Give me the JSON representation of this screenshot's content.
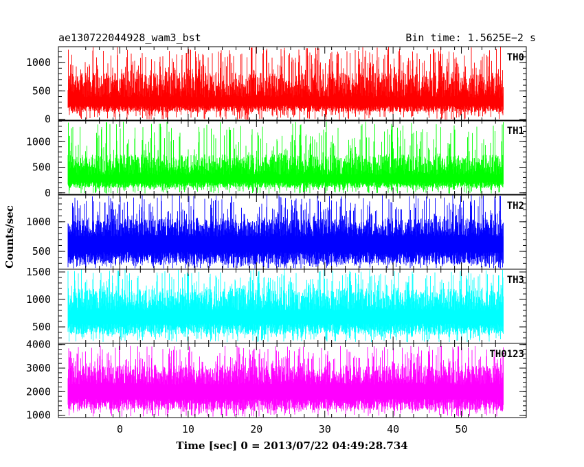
{
  "header": {
    "left_title": "ae130722044928_wam3_bst",
    "right_title": "Bin time: 1.5625E−2 s"
  },
  "ylabel": "Counts/sec",
  "xlabel": "Time [sec] 0 = 2013/07/22 04:49:28.734",
  "chart_data": [
    {
      "type": "line",
      "name": "TH0",
      "color": "#ff0000",
      "ylim": [
        -30,
        1280
      ],
      "yticks": [
        0,
        500,
        1000
      ],
      "x_range": [
        -7.5,
        56
      ],
      "base": 150,
      "spread": [
        380,
        820
      ],
      "spike_max": 1280,
      "series": [
        {
          "name": "TH0",
          "x_start": -7.5,
          "x_end": 56.0,
          "y_typical_low": 150,
          "y_typical_high": 820,
          "y_max": 1280
        }
      ]
    },
    {
      "type": "line",
      "name": "TH1",
      "color": "#00ff00",
      "ylim": [
        -30,
        1420
      ],
      "yticks": [
        0,
        500,
        1000
      ],
      "x_range": [
        -7.5,
        56
      ],
      "base": 120,
      "spread": [
        350,
        750
      ],
      "spike_max": 1400,
      "series": [
        {
          "name": "TH1",
          "x_start": -7.5,
          "x_end": 56.0,
          "y_typical_low": 120,
          "y_typical_high": 750,
          "y_max": 1400
        }
      ]
    },
    {
      "type": "line",
      "name": "TH2",
      "color": "#0000ff",
      "ylim": [
        200,
        1450
      ],
      "yticks": [
        500,
        1000
      ],
      "x_range": [
        -7.5,
        56
      ],
      "base": 320,
      "spread": [
        750,
        1050
      ],
      "spike_max": 1450,
      "series": [
        {
          "name": "TH2",
          "x_start": -7.5,
          "x_end": 56.0,
          "y_typical_low": 320,
          "y_typical_high": 1050,
          "y_max": 1450
        }
      ]
    },
    {
      "type": "line",
      "name": "TH3",
      "color": "#00ffff",
      "ylim": [
        200,
        1550
      ],
      "yticks": [
        500,
        1000,
        1500
      ],
      "x_range": [
        -7.5,
        56
      ],
      "base": 400,
      "spread": [
        800,
        1200
      ],
      "spike_max": 1550,
      "series": [
        {
          "name": "TH3",
          "x_start": -7.5,
          "x_end": 56.0,
          "y_typical_low": 400,
          "y_typical_high": 1200,
          "y_max": 1550
        }
      ]
    },
    {
      "type": "line",
      "name": "TH0123",
      "color": "#ff00ff",
      "ylim": [
        900,
        4050
      ],
      "yticks": [
        1000,
        2000,
        3000,
        4000
      ],
      "x_range": [
        -7.5,
        56
      ],
      "base": 1300,
      "spread": [
        2300,
        3100
      ],
      "spike_max": 3950,
      "series": [
        {
          "name": "TH0123",
          "x_start": -7.5,
          "x_end": 56.0,
          "y_typical_low": 1300,
          "y_typical_high": 3100,
          "y_max": 3950
        }
      ]
    }
  ],
  "xaxis": {
    "xlim": [
      -9,
      59.5
    ],
    "ticks": [
      0,
      10,
      20,
      30,
      40,
      50
    ],
    "tick_labels": [
      "0",
      "10",
      "20",
      "30",
      "40",
      "50"
    ]
  }
}
